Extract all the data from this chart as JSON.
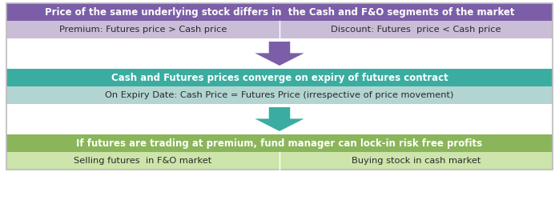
{
  "box1_header_text": "Price of the same underlying stock differs in  the Cash and F&O segments of the market",
  "box1_header_bg": "#7B5EA7",
  "box1_sub_bg": "#C9BDD8",
  "box1_left_text": "Premium: Futures price > Cash price",
  "box1_right_text": "Discount: Futures  price < Cash price",
  "arrow1_color": "#7B5EA7",
  "box2_header_text": "Cash and Futures prices converge on expiry of futures contract",
  "box2_header_bg": "#3AADA0",
  "box2_sub_bg": "#B2D5D2",
  "box2_sub_text": "On Expiry Date: Cash Price = Futures Price (irrespective of price movement)",
  "arrow2_color": "#3AADA0",
  "box3_header_text": "If futures are trading at premium, fund manager can lock-in risk free profits",
  "box3_header_bg": "#8BB55A",
  "box3_sub_bg": "#CDE4AA",
  "box3_left_text": "Selling futures  in F&O market",
  "box3_right_text": "Buying stock in cash market",
  "bg_color": "#FFFFFF",
  "header_font_size": 8.5,
  "sub_font_size": 8.2,
  "text_color_white": "#FFFFFF",
  "text_color_dark": "#2A2A2A",
  "fig_width": 6.98,
  "fig_height": 2.6,
  "dpi": 100
}
